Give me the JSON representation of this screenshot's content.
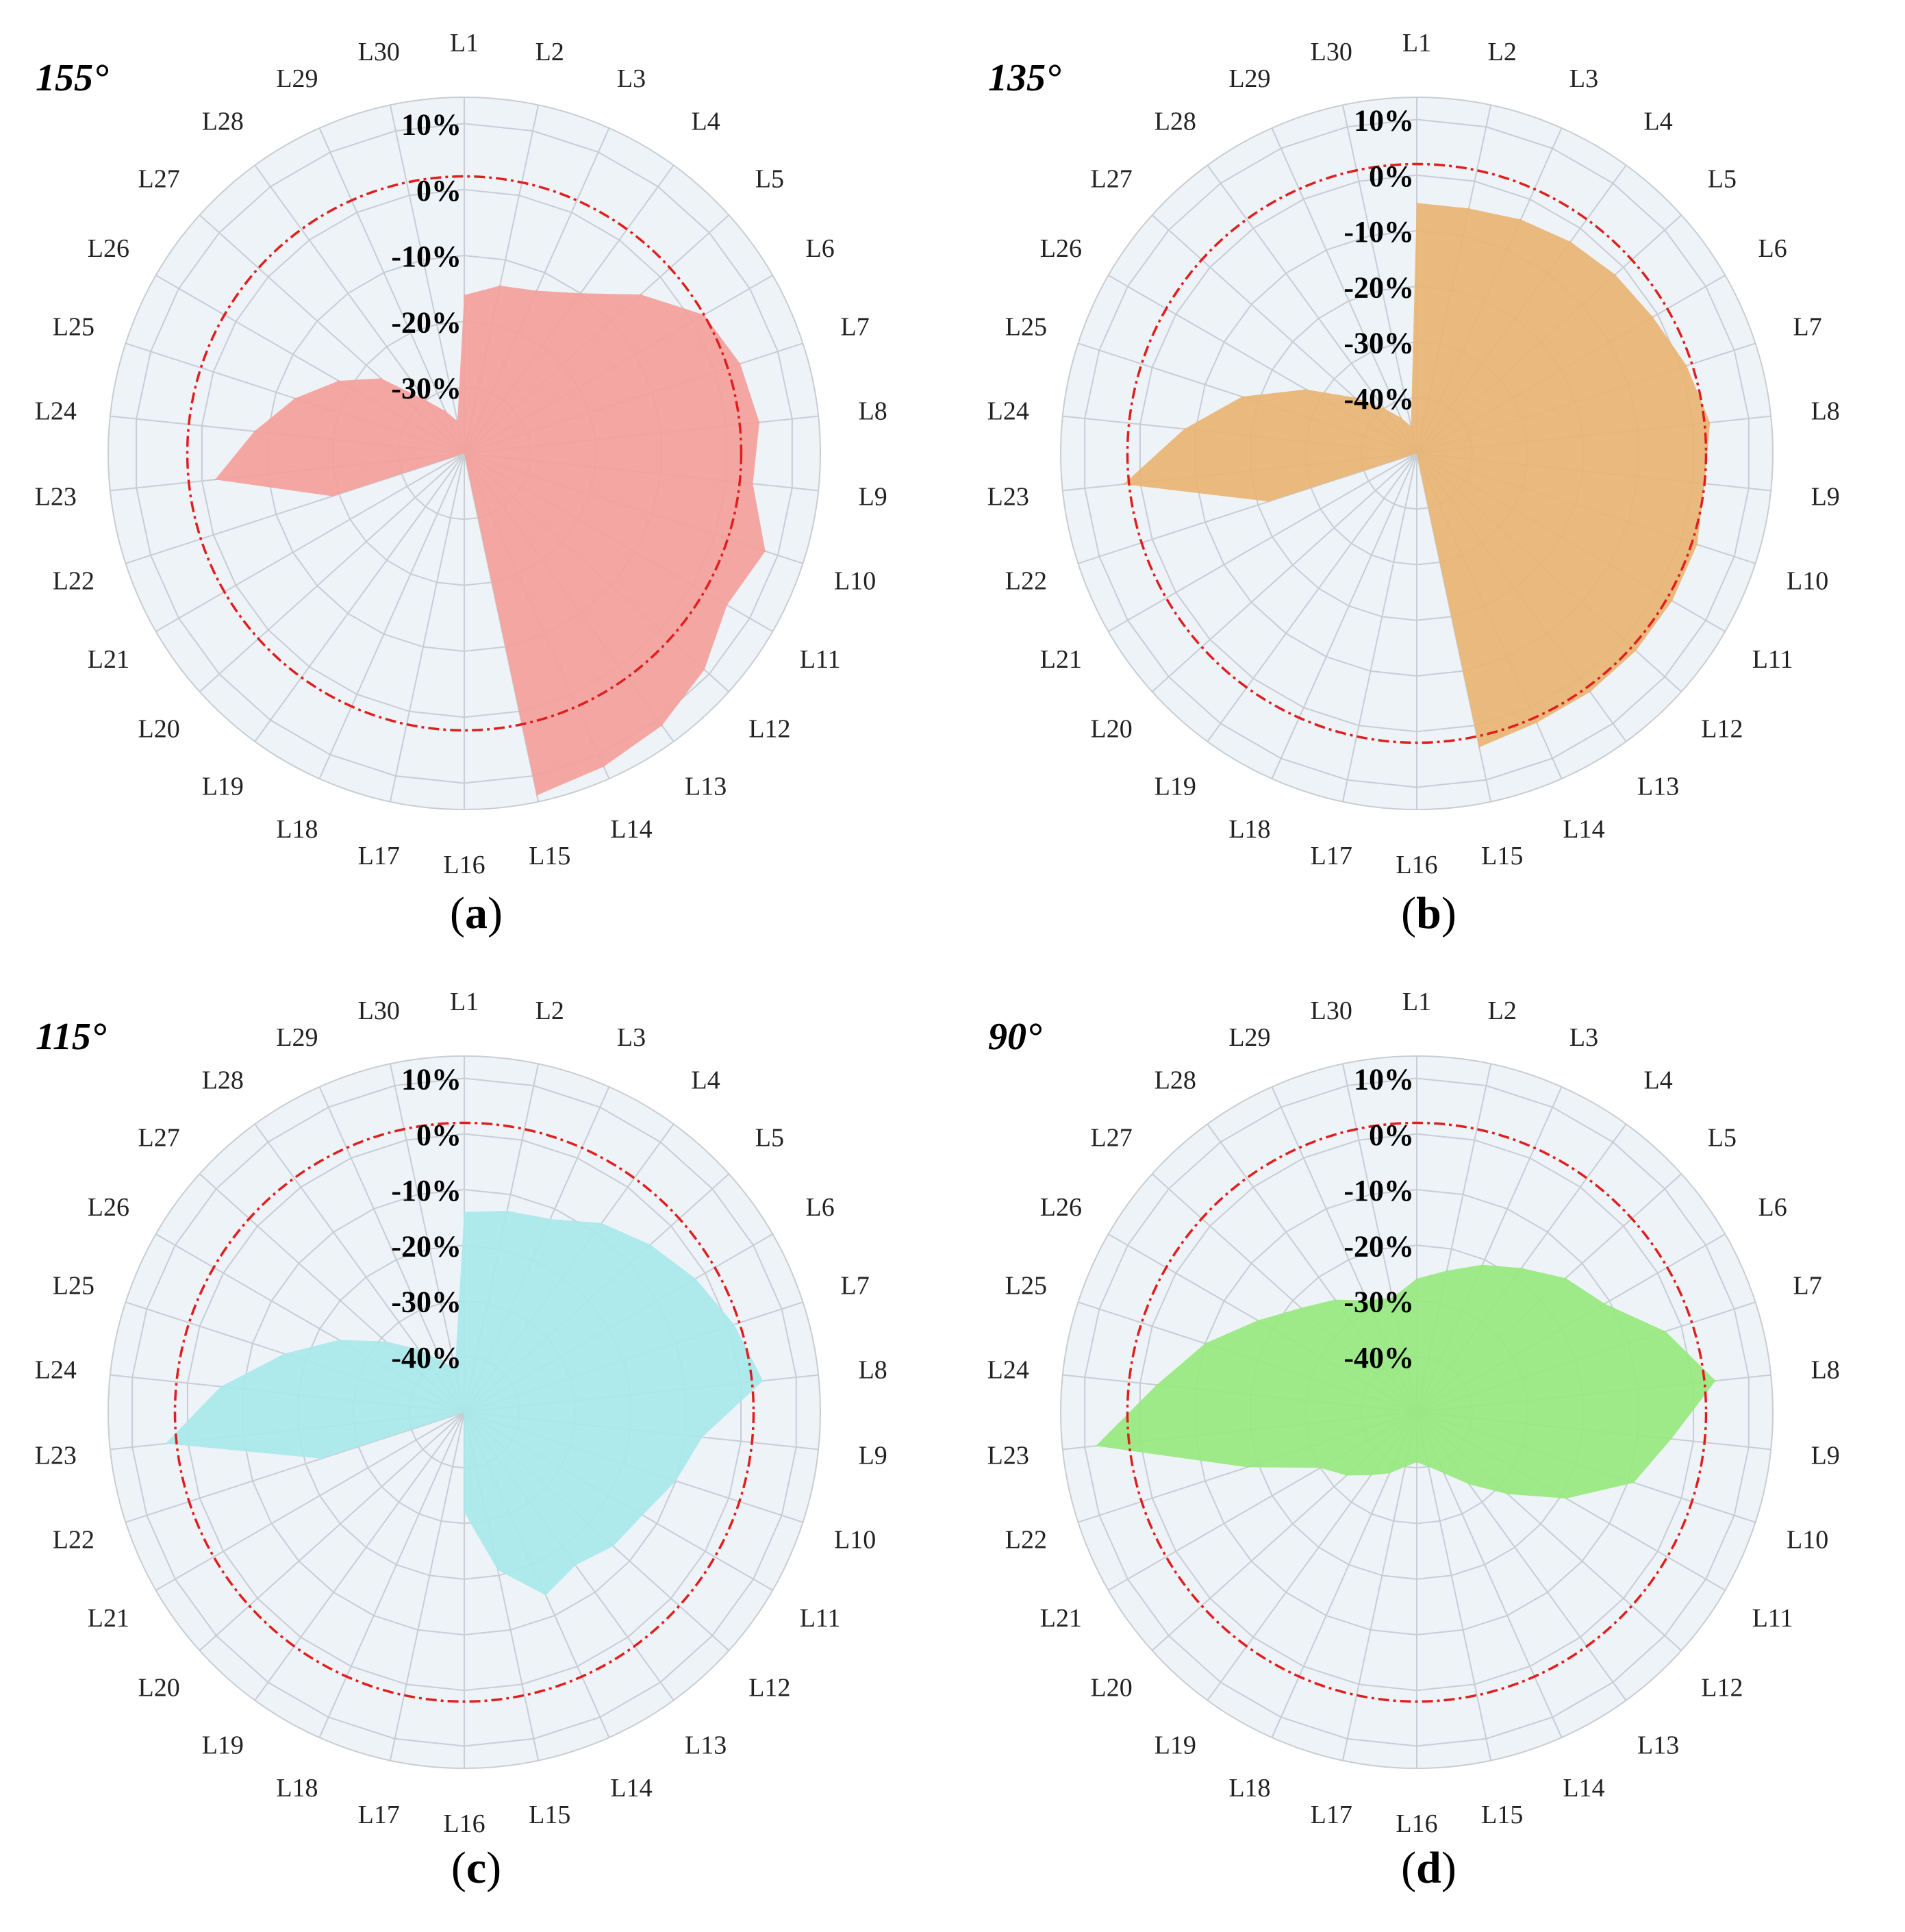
{
  "chart_data": [
    {
      "type": "radar",
      "panel": "a",
      "title": "155°",
      "caption_letter": "a",
      "color": "#f4a09a",
      "categories": [
        "L1",
        "L2",
        "L3",
        "L4",
        "L5",
        "L6",
        "L7",
        "L8",
        "L9",
        "L10",
        "L11",
        "L12",
        "L13",
        "L14",
        "L15",
        "L16",
        "L17",
        "L18",
        "L19",
        "L20",
        "L21",
        "L22",
        "L23",
        "L24",
        "L25",
        "L26",
        "L27",
        "L28",
        "L29",
        "L30"
      ],
      "radial_ticks": [
        "-30%",
        "-20%",
        "-10%",
        "0%",
        "10%"
      ],
      "rlim": [
        -40,
        14
      ],
      "reference_value": 2,
      "values": [
        -16,
        -14,
        -13,
        -10,
        -4,
        2,
        4,
        5,
        4,
        8,
        6,
        9,
        11,
        12,
        13,
        -40,
        -40,
        -40,
        -40,
        -40,
        -40,
        -19,
        -2,
        -8,
        -13,
        -18,
        -23,
        -30,
        -33,
        -35
      ]
    },
    {
      "type": "radar",
      "panel": "b",
      "title": "135°",
      "caption_letter": "b",
      "color": "#e9b472",
      "categories": [
        "L1",
        "L2",
        "L3",
        "L4",
        "L5",
        "L6",
        "L7",
        "L8",
        "L9",
        "L10",
        "L11",
        "L12",
        "L13",
        "L14",
        "L15",
        "L16",
        "L17",
        "L18",
        "L19",
        "L20",
        "L21",
        "L22",
        "L23",
        "L24",
        "L25",
        "L26",
        "L27",
        "L28",
        "L29",
        "L30"
      ],
      "radial_ticks": [
        "-40%",
        "-30%",
        "-20%",
        "-10%",
        "0%",
        "10%"
      ],
      "rlim": [
        -50,
        14
      ],
      "reference_value": 2,
      "values": [
        -5,
        -5,
        -4,
        -3,
        -2,
        -1,
        1,
        3,
        2,
        3,
        3,
        3,
        3,
        3,
        4,
        -50,
        -50,
        -50,
        -50,
        -50,
        -50,
        -22,
        3,
        -8,
        -17,
        -27,
        -35,
        -40,
        -43,
        -45
      ]
    },
    {
      "type": "radar",
      "panel": "c",
      "title": "115°",
      "caption_letter": "c",
      "color": "#a8e8ea",
      "categories": [
        "L1",
        "L2",
        "L3",
        "L4",
        "L5",
        "L6",
        "L7",
        "L8",
        "L9",
        "L10",
        "L11",
        "L12",
        "L13",
        "L14",
        "L15",
        "L16",
        "L17",
        "L18",
        "L19",
        "L20",
        "L21",
        "L22",
        "L23",
        "L24",
        "L25",
        "L26",
        "L27",
        "L28",
        "L29",
        "L30"
      ],
      "radial_ticks": [
        "-40%",
        "-30%",
        "-20%",
        "-10%",
        "0%",
        "10%"
      ],
      "rlim": [
        -50,
        14
      ],
      "reference_value": 2,
      "values": [
        -14,
        -13,
        -12,
        -8,
        -5,
        -2,
        1,
        4,
        -7,
        -10,
        -13,
        -14,
        -16,
        -14,
        -21,
        -32,
        -50,
        -50,
        -50,
        -50,
        -50,
        -23,
        4,
        -6,
        -16,
        -24,
        -31,
        -36,
        -40,
        -42
      ]
    },
    {
      "type": "radar",
      "panel": "d",
      "title": "90°",
      "caption_letter": "d",
      "color": "#97e97e",
      "categories": [
        "L1",
        "L2",
        "L3",
        "L4",
        "L5",
        "L6",
        "L7",
        "L8",
        "L9",
        "L10",
        "L11",
        "L12",
        "L13",
        "L14",
        "L15",
        "L16",
        "L17",
        "L18",
        "L19",
        "L20",
        "L21",
        "L22",
        "L23",
        "L24",
        "L25",
        "L26",
        "L27",
        "L28",
        "L29",
        "L30"
      ],
      "radial_ticks": [
        "-40%",
        "-30%",
        "-20%",
        "-10%",
        "0%",
        "10%"
      ],
      "rlim": [
        -50,
        14
      ],
      "reference_value": 2,
      "values": [
        -26,
        -24,
        -21,
        -18,
        -14,
        -11,
        -3,
        4,
        -4,
        -9,
        -19,
        -28,
        -34,
        -38,
        -40,
        -41,
        -40,
        -38,
        -36,
        -33,
        -30,
        -18,
        8,
        -3,
        -10,
        -17,
        -22,
        -25,
        -28,
        -29
      ]
    }
  ]
}
